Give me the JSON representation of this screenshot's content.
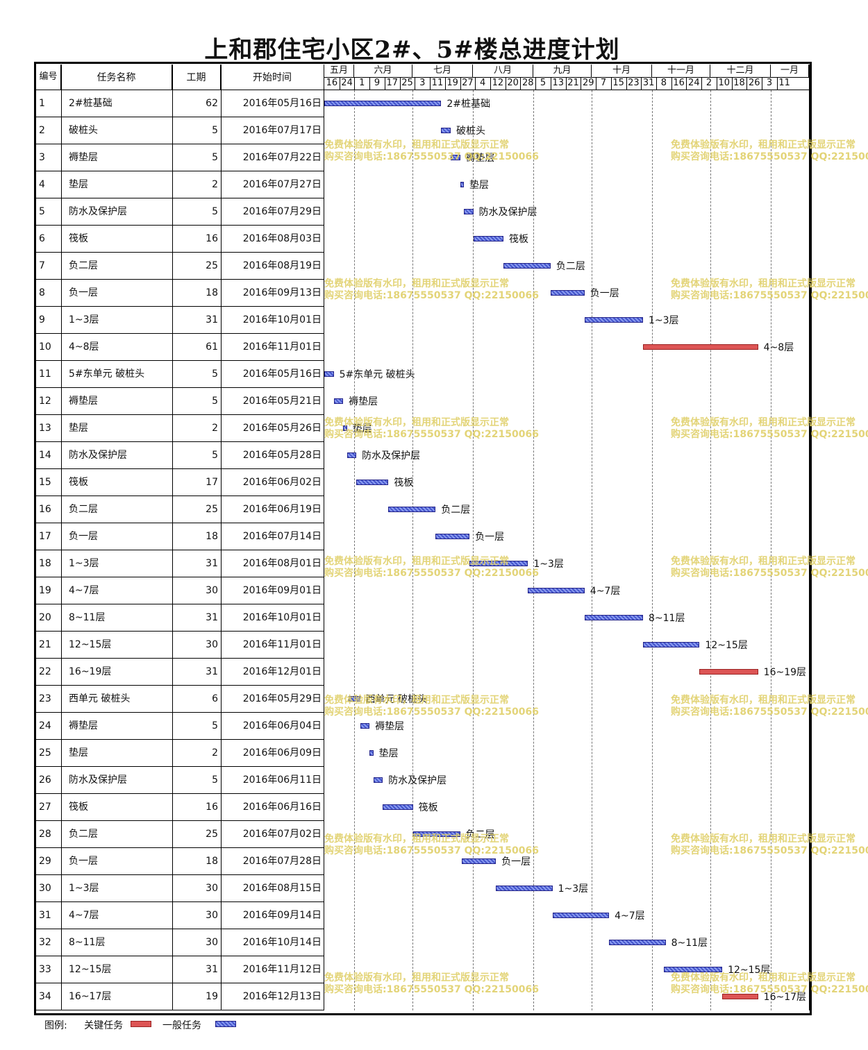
{
  "title": "上和郡住宅小区2#、5#楼总进度计划",
  "headers": {
    "id": "编号",
    "name": "任务名称",
    "duration": "工期",
    "start": "开始时间"
  },
  "legend": {
    "label": "图例:",
    "critical": "关键任务",
    "normal": "一般任务"
  },
  "colors": {
    "critical": "#dd5555",
    "normal": "#4455cc"
  },
  "timeline": {
    "months": [
      "五月",
      "六月",
      "七月",
      "八月",
      "九月",
      "十月",
      "十一月",
      "十二月",
      "一月"
    ],
    "ticks": [
      "16",
      "24",
      "1",
      "9",
      "17",
      "25",
      "3",
      "11",
      "19",
      "27",
      "4",
      "12",
      "20",
      "28",
      "5",
      "13",
      "21",
      "29",
      "7",
      "15",
      "23",
      "31",
      "8",
      "16",
      "24",
      "2",
      "10",
      "18",
      "26",
      "3",
      "11"
    ]
  },
  "watermark": {
    "line1": "免费体验版有水印，租用和正式版显示正常",
    "line2": "购买咨询电话:18675550537 QQ:22150066"
  },
  "chart_data": {
    "type": "gantt",
    "title": "上和郡住宅小区2#、5#楼总进度计划",
    "x_range": [
      "2016-05-16",
      "2017-01-11"
    ],
    "tasks": [
      {
        "id": "1",
        "name": "2#桩基础",
        "duration": 62,
        "start": "2016年05月16日",
        "start_iso": "2016-05-16",
        "label": "2#桩基础",
        "critical": false
      },
      {
        "id": "2",
        "name": "破桩头",
        "duration": 5,
        "start": "2016年07月17日",
        "start_iso": "2016-07-17",
        "label": "破桩头",
        "critical": false
      },
      {
        "id": "3",
        "name": "褥垫层",
        "duration": 5,
        "start": "2016年07月22日",
        "start_iso": "2016-07-22",
        "label": "褥垫层",
        "critical": false
      },
      {
        "id": "4",
        "name": "垫层",
        "duration": 2,
        "start": "2016年07月27日",
        "start_iso": "2016-07-27",
        "label": "垫层",
        "critical": false
      },
      {
        "id": "5",
        "name": "防水及保护层",
        "duration": 5,
        "start": "2016年07月29日",
        "start_iso": "2016-07-29",
        "label": "防水及保护层",
        "critical": false
      },
      {
        "id": "6",
        "name": "筏板",
        "duration": 16,
        "start": "2016年08月03日",
        "start_iso": "2016-08-03",
        "label": "筏板",
        "critical": false
      },
      {
        "id": "7",
        "name": "负二层",
        "duration": 25,
        "start": "2016年08月19日",
        "start_iso": "2016-08-19",
        "label": "负二层",
        "critical": false
      },
      {
        "id": "8",
        "name": "负一层",
        "duration": 18,
        "start": "2016年09月13日",
        "start_iso": "2016-09-13",
        "label": "负一层",
        "critical": false
      },
      {
        "id": "9",
        "name": "1~3层",
        "duration": 31,
        "start": "2016年10月01日",
        "start_iso": "2016-10-01",
        "label": "1~3层",
        "critical": false
      },
      {
        "id": "10",
        "name": "4~8层",
        "duration": 61,
        "start": "2016年11月01日",
        "start_iso": "2016-11-01",
        "label": "4~8层",
        "critical": true
      },
      {
        "id": "11",
        "name": "5#东单元 破桩头",
        "duration": 5,
        "start": "2016年05月16日",
        "start_iso": "2016-05-16",
        "label": "5#东单元 破桩头",
        "critical": false
      },
      {
        "id": "12",
        "name": "褥垫层",
        "duration": 5,
        "start": "2016年05月21日",
        "start_iso": "2016-05-21",
        "label": "褥垫层",
        "critical": false
      },
      {
        "id": "13",
        "name": "垫层",
        "duration": 2,
        "start": "2016年05月26日",
        "start_iso": "2016-05-26",
        "label": "垫层",
        "critical": false
      },
      {
        "id": "14",
        "name": "防水及保护层",
        "duration": 5,
        "start": "2016年05月28日",
        "start_iso": "2016-05-28",
        "label": "防水及保护层",
        "critical": false
      },
      {
        "id": "15",
        "name": "筏板",
        "duration": 17,
        "start": "2016年06月02日",
        "start_iso": "2016-06-02",
        "label": "筏板",
        "critical": false
      },
      {
        "id": "16",
        "name": "负二层",
        "duration": 25,
        "start": "2016年06月19日",
        "start_iso": "2016-06-19",
        "label": "负二层",
        "critical": false
      },
      {
        "id": "17",
        "name": "负一层",
        "duration": 18,
        "start": "2016年07月14日",
        "start_iso": "2016-07-14",
        "label": "负一层",
        "critical": false
      },
      {
        "id": "18",
        "name": "1~3层",
        "duration": 31,
        "start": "2016年08月01日",
        "start_iso": "2016-08-01",
        "label": "1~3层",
        "critical": false
      },
      {
        "id": "19",
        "name": "4~7层",
        "duration": 30,
        "start": "2016年09月01日",
        "start_iso": "2016-09-01",
        "label": "4~7层",
        "critical": false
      },
      {
        "id": "20",
        "name": "8~11层",
        "duration": 31,
        "start": "2016年10月01日",
        "start_iso": "2016-10-01",
        "label": "8~11层",
        "critical": false
      },
      {
        "id": "21",
        "name": "12~15层",
        "duration": 30,
        "start": "2016年11月01日",
        "start_iso": "2016-11-01",
        "label": "12~15层",
        "critical": false
      },
      {
        "id": "22",
        "name": "16~19层",
        "duration": 31,
        "start": "2016年12月01日",
        "start_iso": "2016-12-01",
        "label": "16~19层",
        "critical": true
      },
      {
        "id": "23",
        "name": "西单元 破桩头",
        "duration": 6,
        "start": "2016年05月29日",
        "start_iso": "2016-05-29",
        "label": "西单元 破桩头",
        "critical": false
      },
      {
        "id": "24",
        "name": "褥垫层",
        "duration": 5,
        "start": "2016年06月04日",
        "start_iso": "2016-06-04",
        "label": "褥垫层",
        "critical": false
      },
      {
        "id": "25",
        "name": "垫层",
        "duration": 2,
        "start": "2016年06月09日",
        "start_iso": "2016-06-09",
        "label": "垫层",
        "critical": false
      },
      {
        "id": "26",
        "name": "防水及保护层",
        "duration": 5,
        "start": "2016年06月11日",
        "start_iso": "2016-06-11",
        "label": "防水及保护层",
        "critical": false
      },
      {
        "id": "27",
        "name": "筏板",
        "duration": 16,
        "start": "2016年06月16日",
        "start_iso": "2016-06-16",
        "label": "筏板",
        "critical": false
      },
      {
        "id": "28",
        "name": "负二层",
        "duration": 25,
        "start": "2016年07月02日",
        "start_iso": "2016-07-02",
        "label": "负二层",
        "critical": false
      },
      {
        "id": "29",
        "name": "负一层",
        "duration": 18,
        "start": "2016年07月28日",
        "start_iso": "2016-07-28",
        "label": "负一层",
        "critical": false
      },
      {
        "id": "30",
        "name": "1~3层",
        "duration": 30,
        "start": "2016年08月15日",
        "start_iso": "2016-08-15",
        "label": "1~3层",
        "critical": false
      },
      {
        "id": "31",
        "name": "4~7层",
        "duration": 30,
        "start": "2016年09月14日",
        "start_iso": "2016-09-14",
        "label": "4~7层",
        "critical": false
      },
      {
        "id": "32",
        "name": "8~11层",
        "duration": 30,
        "start": "2016年10月14日",
        "start_iso": "2016-10-14",
        "label": "8~11层",
        "critical": false
      },
      {
        "id": "33",
        "name": "12~15层",
        "duration": 31,
        "start": "2016年11月12日",
        "start_iso": "2016-11-12",
        "label": "12~15层",
        "critical": false
      },
      {
        "id": "34",
        "name": "16~17层",
        "duration": 19,
        "start": "2016年12月13日",
        "start_iso": "2016-12-13",
        "label": "16~17层",
        "critical": true
      }
    ]
  }
}
